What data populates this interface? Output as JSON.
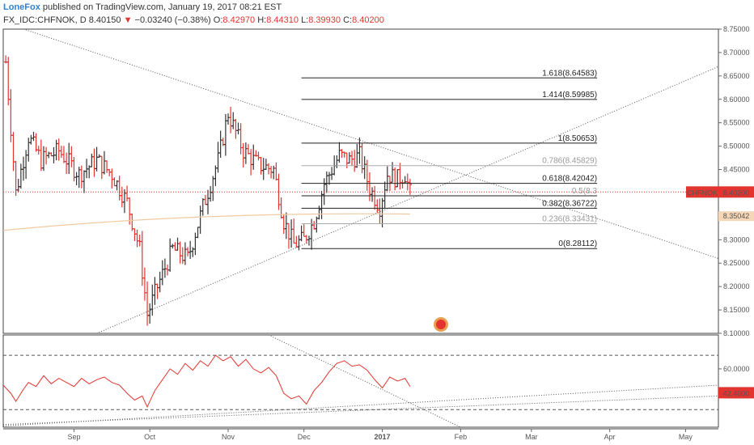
{
  "header": {
    "author": "LoneFox",
    "published": "published on TradingView.com, January 19, 2017 08:21 EST",
    "symbol": "FX_IDC:CHFNOK, D",
    "last": "8.40150",
    "change": "−0.03240 (−0.38%)",
    "open_label": "O:",
    "open": "8.42970",
    "high_label": "H:",
    "high": "8.44310",
    "low_label": "L:",
    "low": "8.39930",
    "close_label": "C:",
    "close": "8.40200"
  },
  "colors": {
    "up": "#333333",
    "down": "#e3342f",
    "accent": "#2f80d1",
    "ma": "#f0c9a0",
    "rsi": "#e3342f"
  },
  "chart_data": [
    {
      "type": "bar",
      "style": "ohlc",
      "symbol": "CHFNOK",
      "price_tag": "8.40200",
      "second_tag": "8.35042",
      "ylim": [
        8.1,
        8.75
      ],
      "y_ticks": [
        "8.75000",
        "8.70000",
        "8.65000",
        "8.60000",
        "8.55000",
        "8.50000",
        "8.45000",
        "8.40000",
        "8.35000",
        "8.30000",
        "8.25000",
        "8.20000",
        "8.15000",
        "8.10000"
      ],
      "x_ticks": [
        {
          "label": "Sep",
          "day": 91
        },
        {
          "label": "Oct",
          "day": 121
        },
        {
          "label": "Nov",
          "day": 152
        },
        {
          "label": "Dec",
          "day": 182
        },
        {
          "label": "2017",
          "day": 213
        },
        {
          "label": "Feb",
          "day": 244
        },
        {
          "label": "Mar",
          "day": 272
        },
        {
          "label": "Apr",
          "day": 303
        },
        {
          "label": "May",
          "day": 333
        }
      ],
      "x_range": [
        63,
        346
      ],
      "fib_levels": [
        {
          "label": "1.618(8.64583)",
          "value": 8.64583
        },
        {
          "label": "1.414(8.59985)",
          "value": 8.59985
        },
        {
          "label": "1(8.50653)",
          "value": 8.50653
        },
        {
          "label": "0.786(8.45829)",
          "value": 8.45829
        },
        {
          "label": "0.618(8.42042)",
          "value": 8.42042
        },
        {
          "label": "0.5(8.3",
          "value": 8.39382
        },
        {
          "label": "0.382(8.36722)",
          "value": 8.36722
        },
        {
          "label": "0.236(8.33431)",
          "value": 8.33431
        },
        {
          "label": "0(8.28112)",
          "value": 8.28112
        }
      ],
      "key_points": [
        {
          "day": 64,
          "close": 8.68
        },
        {
          "day": 68,
          "close": 8.4
        },
        {
          "day": 73,
          "close": 8.52
        },
        {
          "day": 78,
          "close": 8.47
        },
        {
          "day": 85,
          "close": 8.49
        },
        {
          "day": 93,
          "close": 8.44
        },
        {
          "day": 100,
          "close": 8.47
        },
        {
          "day": 106,
          "close": 8.44
        },
        {
          "day": 112,
          "close": 8.38
        },
        {
          "day": 117,
          "close": 8.28
        },
        {
          "day": 120,
          "close": 8.14
        },
        {
          "day": 124,
          "close": 8.2
        },
        {
          "day": 130,
          "close": 8.28
        },
        {
          "day": 136,
          "close": 8.26
        },
        {
          "day": 142,
          "close": 8.37
        },
        {
          "day": 148,
          "close": 8.47
        },
        {
          "day": 152,
          "close": 8.57
        },
        {
          "day": 158,
          "close": 8.49
        },
        {
          "day": 164,
          "close": 8.46
        },
        {
          "day": 170,
          "close": 8.45
        },
        {
          "day": 174,
          "close": 8.34
        },
        {
          "day": 178,
          "close": 8.29
        },
        {
          "day": 182,
          "close": 8.3
        },
        {
          "day": 186,
          "close": 8.34
        },
        {
          "day": 190,
          "close": 8.42
        },
        {
          "day": 196,
          "close": 8.48
        },
        {
          "day": 200,
          "close": 8.47
        },
        {
          "day": 204,
          "close": 8.48
        },
        {
          "day": 208,
          "close": 8.41
        },
        {
          "day": 212,
          "close": 8.37
        },
        {
          "day": 215,
          "close": 8.44
        },
        {
          "day": 219,
          "close": 8.43
        },
        {
          "day": 222,
          "close": 8.44
        },
        {
          "day": 224,
          "close": 8.4
        }
      ]
    },
    {
      "type": "line",
      "name": "RSI",
      "value_tag": "42.4000",
      "ylim": [
        17,
        85
      ],
      "y_ticks": [
        "60.0000",
        "40.0000"
      ],
      "levels": [
        70,
        30
      ],
      "points": [
        {
          "day": 63,
          "value": 48
        },
        {
          "day": 66,
          "value": 42
        },
        {
          "day": 68,
          "value": 36
        },
        {
          "day": 71,
          "value": 45
        },
        {
          "day": 73,
          "value": 50
        },
        {
          "day": 76,
          "value": 47
        },
        {
          "day": 79,
          "value": 55
        },
        {
          "day": 82,
          "value": 49
        },
        {
          "day": 85,
          "value": 53
        },
        {
          "day": 88,
          "value": 50
        },
        {
          "day": 91,
          "value": 47
        },
        {
          "day": 94,
          "value": 53
        },
        {
          "day": 97,
          "value": 49
        },
        {
          "day": 100,
          "value": 52
        },
        {
          "day": 103,
          "value": 54
        },
        {
          "day": 106,
          "value": 50
        },
        {
          "day": 109,
          "value": 48
        },
        {
          "day": 112,
          "value": 42
        },
        {
          "day": 115,
          "value": 37
        },
        {
          "day": 118,
          "value": 40
        },
        {
          "day": 120,
          "value": 32
        },
        {
          "day": 123,
          "value": 44
        },
        {
          "day": 126,
          "value": 52
        },
        {
          "day": 129,
          "value": 60
        },
        {
          "day": 132,
          "value": 56
        },
        {
          "day": 135,
          "value": 64
        },
        {
          "day": 138,
          "value": 59
        },
        {
          "day": 141,
          "value": 66
        },
        {
          "day": 144,
          "value": 62
        },
        {
          "day": 147,
          "value": 70
        },
        {
          "day": 150,
          "value": 66
        },
        {
          "day": 153,
          "value": 69
        },
        {
          "day": 156,
          "value": 62
        },
        {
          "day": 159,
          "value": 67
        },
        {
          "day": 162,
          "value": 60
        },
        {
          "day": 165,
          "value": 57
        },
        {
          "day": 168,
          "value": 61
        },
        {
          "day": 171,
          "value": 55
        },
        {
          "day": 174,
          "value": 42
        },
        {
          "day": 177,
          "value": 38
        },
        {
          "day": 180,
          "value": 40
        },
        {
          "day": 183,
          "value": 34
        },
        {
          "day": 186,
          "value": 44
        },
        {
          "day": 189,
          "value": 50
        },
        {
          "day": 192,
          "value": 58
        },
        {
          "day": 195,
          "value": 64
        },
        {
          "day": 198,
          "value": 66
        },
        {
          "day": 201,
          "value": 62
        },
        {
          "day": 204,
          "value": 63
        },
        {
          "day": 207,
          "value": 59
        },
        {
          "day": 210,
          "value": 52
        },
        {
          "day": 213,
          "value": 46
        },
        {
          "day": 216,
          "value": 54
        },
        {
          "day": 219,
          "value": 51
        },
        {
          "day": 222,
          "value": 53
        },
        {
          "day": 224,
          "value": 47
        }
      ]
    }
  ]
}
